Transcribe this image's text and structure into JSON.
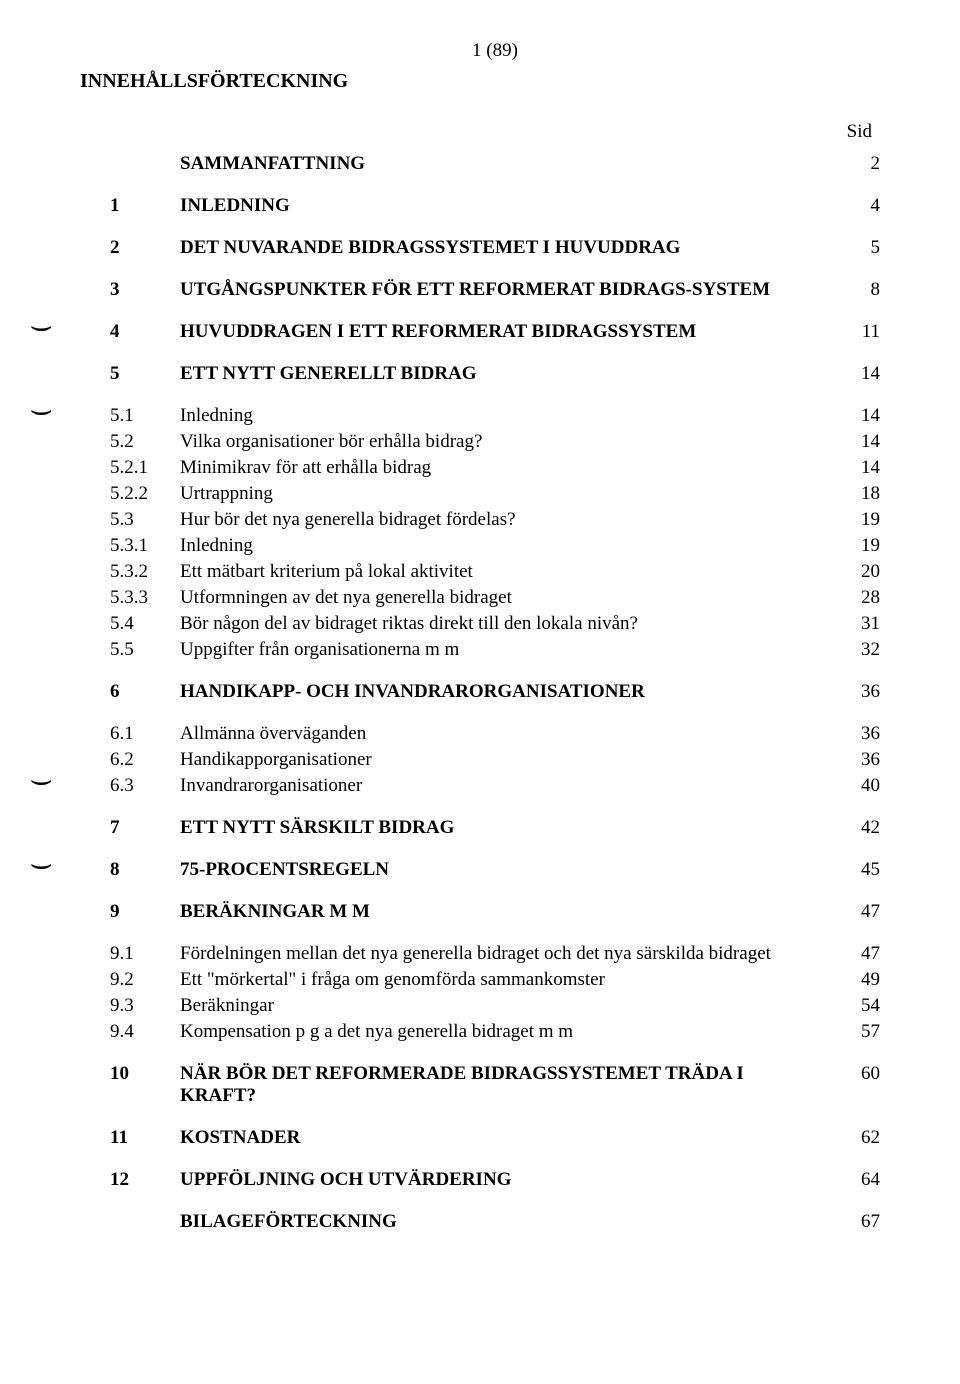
{
  "pageNumber": "1  (89)",
  "title": "INNEHÅLLSFÖRTECKNING",
  "sidLabel": "Sid",
  "rows": [
    {
      "num": "",
      "text": "SAMMANFATTNING",
      "page": "2",
      "bold": true
    },
    {
      "gap": true
    },
    {
      "num": "1",
      "text": "INLEDNING",
      "page": "4",
      "bold": true
    },
    {
      "gap": true
    },
    {
      "num": "2",
      "text": "DET NUVARANDE BIDRAGSSYSTEMET I HUVUDDRAG",
      "page": "5",
      "bold": true
    },
    {
      "gap": true
    },
    {
      "num": "3",
      "text": "UTGÅNGSPUNKTER FÖR ETT REFORMERAT BIDRAGS-SYSTEM",
      "page": "8",
      "bold": true
    },
    {
      "gap": true
    },
    {
      "num": "4",
      "text": "HUVUDDRAGEN I ETT REFORMERAT BIDRAGSSYSTEM",
      "page": "11",
      "bold": true,
      "bind": true
    },
    {
      "gap": true
    },
    {
      "num": "5",
      "text": "ETT NYTT GENERELLT BIDRAG",
      "page": "14",
      "bold": true
    },
    {
      "gap": true
    },
    {
      "num": "5.1",
      "text": "Inledning",
      "page": "14",
      "bind": true
    },
    {
      "num": "5.2",
      "text": "Vilka organisationer bör erhålla bidrag?",
      "page": "14"
    },
    {
      "num": "5.2.1",
      "text": "Minimikrav för att erhålla bidrag",
      "page": "14"
    },
    {
      "num": "5.2.2",
      "text": "Urtrappning",
      "page": "18"
    },
    {
      "num": "5.3",
      "text": "Hur bör det nya generella bidraget fördelas?",
      "page": "19"
    },
    {
      "num": "5.3.1",
      "text": "Inledning",
      "page": "19"
    },
    {
      "num": "5.3.2",
      "text": "Ett mätbart kriterium på lokal aktivitet",
      "page": "20"
    },
    {
      "num": "5.3.3",
      "text": "Utformningen av det nya generella bidraget",
      "page": "28"
    },
    {
      "num": "5.4",
      "text": "Bör någon del av bidraget riktas direkt till den lokala nivån?",
      "page": "31"
    },
    {
      "num": "5.5",
      "text": "Uppgifter från organisationerna m m",
      "page": "32"
    },
    {
      "gap": true
    },
    {
      "num": "6",
      "text": "HANDIKAPP- OCH INVANDRARORGANISATIONER",
      "page": "36",
      "bold": true
    },
    {
      "gap": true
    },
    {
      "num": "6.1",
      "text": "Allmänna överväganden",
      "page": "36"
    },
    {
      "num": "6.2",
      "text": "Handikapporganisationer",
      "page": "36"
    },
    {
      "num": "6.3",
      "text": "Invandrarorganisationer",
      "page": "40",
      "bind": true
    },
    {
      "gap": true
    },
    {
      "num": "7",
      "text": "ETT NYTT SÄRSKILT BIDRAG",
      "page": "42",
      "bold": true
    },
    {
      "gap": true
    },
    {
      "num": "8",
      "text": "75-PROCENTSREGELN",
      "page": "45",
      "bold": true,
      "bind": true
    },
    {
      "gap": true
    },
    {
      "num": "9",
      "text": "BERÄKNINGAR M M",
      "page": "47",
      "bold": true
    },
    {
      "gap": true
    },
    {
      "num": "9.1",
      "text": "Fördelningen mellan det nya generella bidraget och det nya särskilda bidraget",
      "page": "47"
    },
    {
      "num": "9.2",
      "text": "Ett \"mörkertal\" i fråga om genomförda sammankomster",
      "page": "49"
    },
    {
      "num": "9.3",
      "text": "Beräkningar",
      "page": "54"
    },
    {
      "num": "9.4",
      "text": "Kompensation p g a det nya generella bidraget m m",
      "page": "57"
    },
    {
      "gap": true
    },
    {
      "num": "10",
      "text": "NÄR BÖR DET REFORMERADE BIDRAGSSYSTEMET TRÄDA I KRAFT?",
      "page": "60",
      "bold": true
    },
    {
      "gap": true
    },
    {
      "num": "11",
      "text": "KOSTNADER",
      "page": "62",
      "bold": true
    },
    {
      "gap": true
    },
    {
      "num": "12",
      "text": "UPPFÖLJNING OCH UTVÄRDERING",
      "page": "64",
      "bold": true
    },
    {
      "gap": true
    },
    {
      "num": "",
      "text": "BILAGEFÖRTECKNING",
      "page": "67",
      "bold": true
    }
  ],
  "bindMark": "⌣"
}
